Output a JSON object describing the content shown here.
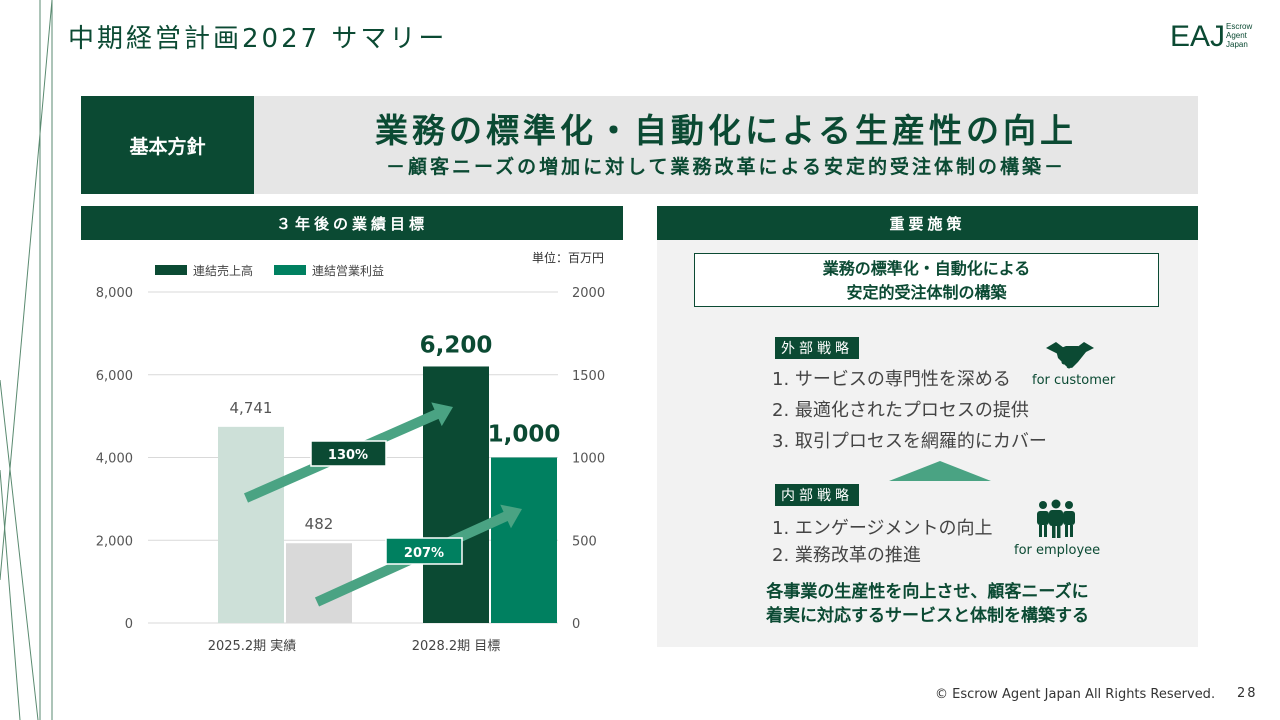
{
  "slide": {
    "title": "中期経営計画2027 サマリー",
    "logo_big": "EAJ",
    "logo_small": [
      "Escrow",
      "Agent",
      "Japan"
    ],
    "policy": {
      "label": "基本方針",
      "main": "業務の標準化・自動化による生産性の向上",
      "sub": "－顧客ニーズの増加に対して業務改革による安定的受注体制の構築－"
    },
    "left_header": "３年後の業績目標",
    "right_header": "重要施策",
    "unit": "単位：百万円",
    "focus": [
      "業務の標準化・自動化による",
      "安定的受注体制の構築"
    ],
    "external": {
      "tag": "外部戦略",
      "items": [
        "1. サービスの専門性を深める",
        "2. 最適化されたプロセスの提供",
        "3. 取引プロセスを網羅的にカバー"
      ],
      "caption": "for customer"
    },
    "internal": {
      "tag": "内部戦略",
      "items": [
        "1. エンゲージメントの向上",
        "2. 業務改革の推進"
      ],
      "caption": "for employee"
    },
    "conclusion": [
      "各事業の生産性を向上させ、顧客ニーズに",
      "着実に対応するサービスと体制を構築する"
    ],
    "footer": "© Escrow Agent Japan All Rights Reserved.",
    "page_number": "28",
    "colors": {
      "dark_green": "#0b4a33",
      "green": "#008060",
      "light_green": "#cde0d8",
      "light_gray": "#d9d9d9",
      "arrow": "#4aa383"
    }
  },
  "chart_data": {
    "type": "bar",
    "categories": [
      "2025.2期 実績",
      "2028.2期 目標"
    ],
    "series": [
      {
        "name": "連結売上高",
        "axis": "left",
        "values": [
          4741,
          6200
        ],
        "labels": [
          "4,741",
          "6,200"
        ]
      },
      {
        "name": "連結営業利益",
        "axis": "right",
        "values": [
          482,
          1000
        ],
        "labels": [
          "482",
          "1,000"
        ]
      }
    ],
    "y_left": {
      "min": 0,
      "max": 8000,
      "ticks": [
        0,
        2000,
        4000,
        6000,
        8000
      ],
      "tick_labels": [
        "0",
        "2,000",
        "4,000",
        "6,000",
        "8,000"
      ]
    },
    "y_right": {
      "min": 0,
      "max": 2000,
      "ticks": [
        0,
        500,
        1000,
        1500,
        2000
      ],
      "tick_labels": [
        "0",
        "500",
        "1000",
        "1500",
        "2000"
      ]
    },
    "growth": [
      "130%",
      "207%"
    ],
    "legend_position": "top-left",
    "grid": true
  }
}
